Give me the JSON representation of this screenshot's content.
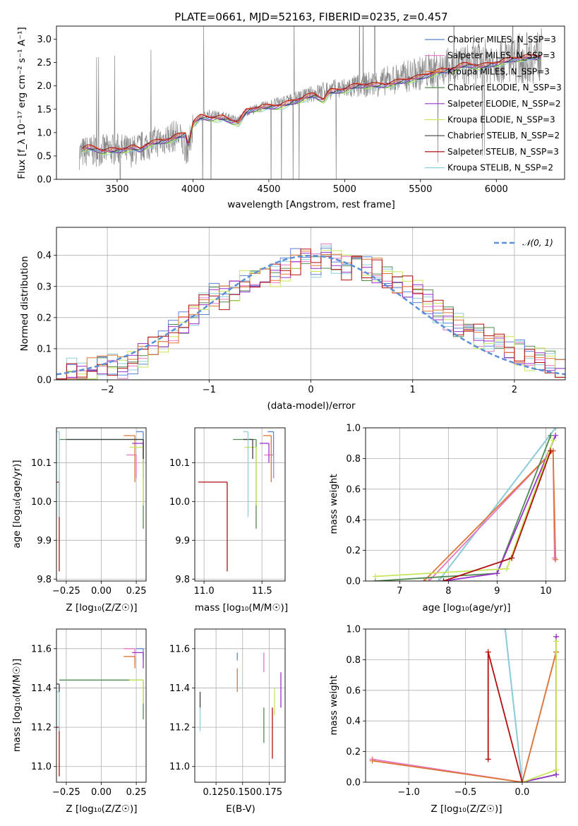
{
  "chart_data": [
    {
      "type": "line",
      "title": "PLATE=0661, MJD=52163, FIBERID=0235, z=0.457",
      "xlabel": "wavelength [Angstrom, rest frame]",
      "ylabel": "Flux [f_λ 10⁻¹⁷ erg cm⁻² s⁻¹ A⁻¹]",
      "xlim": [
        3100,
        6450
      ],
      "ylim": [
        0,
        3.28
      ],
      "xticks": [
        3500,
        4000,
        4500,
        5000,
        5500,
        6000
      ],
      "yticks": [
        0.0,
        0.5,
        1.0,
        1.5,
        2.0,
        2.5,
        3.0
      ],
      "grid": false,
      "legend": "top-right",
      "observed_flux": {
        "x": [
          3250,
          3300,
          3400,
          3500,
          3600,
          3700,
          3800,
          3900,
          3970,
          4000,
          4100,
          4200,
          4300,
          4350,
          4500,
          4700,
          4860,
          5000,
          5200,
          5400,
          5600,
          5800,
          6000,
          6200,
          6300
        ],
        "y": [
          0.55,
          0.6,
          0.62,
          0.65,
          0.6,
          0.75,
          0.85,
          0.95,
          0.6,
          1.2,
          1.4,
          1.35,
          1.25,
          1.45,
          1.6,
          1.75,
          1.9,
          1.95,
          2.05,
          2.2,
          2.35,
          2.45,
          2.55,
          2.6,
          2.65
        ]
      },
      "model_flux": {
        "x": [
          3270,
          3300,
          3400,
          3500,
          3600,
          3650,
          3700,
          3800,
          3900,
          3950,
          3970,
          4000,
          4050,
          4100,
          4200,
          4300,
          4350,
          4400,
          4500,
          4600,
          4700,
          4800,
          4860,
          4900,
          5000,
          5100,
          5200,
          5300,
          5400,
          5500,
          5600,
          5700,
          5800,
          5900,
          6000,
          6100,
          6200,
          6300
        ],
        "y": [
          0.62,
          0.65,
          0.6,
          0.63,
          0.66,
          0.6,
          0.72,
          0.82,
          0.92,
          0.95,
          0.7,
          1.18,
          1.3,
          1.3,
          1.32,
          1.2,
          1.42,
          1.48,
          1.55,
          1.6,
          1.68,
          1.78,
          1.7,
          1.88,
          1.92,
          1.98,
          2.0,
          2.05,
          2.1,
          2.15,
          2.3,
          2.35,
          2.42,
          2.4,
          2.5,
          2.55,
          2.58,
          2.62
        ]
      },
      "series": [
        {
          "name": "Chabrier MILES, N_SSP=3",
          "color": "#5b82d9"
        },
        {
          "name": "Salpeter MILES, N_SSP=3",
          "color": "#e377c2"
        },
        {
          "name": "Kroupa MILES, N_SSP=3",
          "color": "#dd7733"
        },
        {
          "name": "Chabrier ELODIE, N_SSP=3",
          "color": "#4f8a4f"
        },
        {
          "name": "Salpeter ELODIE, N_SSP=2",
          "color": "#9932cc"
        },
        {
          "name": "Kroupa ELODIE, N_SSP=3",
          "color": "#c8e65a"
        },
        {
          "name": "Chabrier STELIB, N_SSP=2",
          "color": "#404040"
        },
        {
          "name": "Salpeter STELIB, N_SSP=3",
          "color": "#b01010"
        },
        {
          "name": "Kroupa STELIB, N_SSP=2",
          "color": "#8ccfd8"
        }
      ]
    },
    {
      "type": "bar",
      "xlabel": "(data-model)/error",
      "ylabel": "Normed distribution",
      "xlim": [
        -2.5,
        2.5
      ],
      "ylim": [
        0,
        0.49
      ],
      "xticks": [
        -2,
        -1,
        0,
        1,
        2
      ],
      "yticks": [
        0.0,
        0.1,
        0.2,
        0.3,
        0.4
      ],
      "grid": true,
      "legend": "top-right",
      "gaussian_label": "𝒩(0, 1)",
      "bin_width": 0.1,
      "histogram_values": [
        0.02,
        0.03,
        0.02,
        0.03,
        0.04,
        0.05,
        0.04,
        0.06,
        0.08,
        0.1,
        0.13,
        0.16,
        0.18,
        0.21,
        0.24,
        0.27,
        0.26,
        0.29,
        0.31,
        0.33,
        0.35,
        0.34,
        0.36,
        0.38,
        0.39,
        0.37,
        0.4,
        0.38,
        0.36,
        0.37,
        0.36,
        0.35,
        0.33,
        0.31,
        0.3,
        0.28,
        0.25,
        0.22,
        0.2,
        0.18,
        0.16,
        0.14,
        0.13,
        0.12,
        0.1,
        0.09,
        0.07,
        0.06,
        0.05,
        0.04
      ]
    },
    {
      "type": "scatter",
      "xlabel": "Z [log₁₀(Z/Z☉)]",
      "ylabel": "age [log₁₀(age/yr)]",
      "xlim": [
        -0.32,
        0.32
      ],
      "ylim": [
        9.795,
        10.19
      ],
      "xticks": [
        -0.25,
        0.0,
        0.25
      ],
      "xticklabels": [
        "−0.25",
        "0.00",
        "0.25"
      ],
      "yticks": [
        9.8,
        9.9,
        10.0,
        10.1
      ],
      "grid": true,
      "points": [
        {
          "series": 0,
          "x": 0.3,
          "y": 10.18,
          "xerr": 0.05,
          "yerr": 0.12
        },
        {
          "series": 1,
          "x": 0.25,
          "y": 10.12,
          "xerr": 0.07,
          "yerr": 0.06
        },
        {
          "series": 2,
          "x": 0.24,
          "y": 10.17,
          "xerr": 0.08,
          "yerr": 0.12
        },
        {
          "series": 3,
          "x": 0.3,
          "y": 10.16,
          "xerr": 0.6,
          "yerr": 0.23
        },
        {
          "series": 4,
          "x": 0.3,
          "y": 10.15,
          "xerr": 0.08,
          "yerr": 0.05
        },
        {
          "series": 5,
          "x": 0.3,
          "y": 10.14,
          "xerr": 0.1,
          "yerr": 0.15
        },
        {
          "series": 6,
          "x": 0.3,
          "y": 10.16,
          "xerr": 0.55,
          "yerr": 0.05
        },
        {
          "series": 7,
          "x": -0.3,
          "y": 10.05,
          "xerr": 0.3,
          "yerr": 0.23
        },
        {
          "series": 8,
          "x": -0.3,
          "y": 10.18,
          "xerr": 0.2,
          "yerr": 0.22
        }
      ]
    },
    {
      "type": "scatter",
      "xlabel": "mass [log₁₀(M/M☉)]",
      "ylabel": "",
      "xlim": [
        10.92,
        11.7
      ],
      "ylim": [
        9.795,
        10.19
      ],
      "xticks": [
        11.0,
        11.5
      ],
      "xticklabels": [
        "11.0",
        "11.5"
      ],
      "yticks": [
        9.8,
        9.9,
        10.0,
        10.1
      ],
      "grid": true,
      "points": [
        {
          "series": 0,
          "x": 11.6,
          "y": 10.18,
          "xerr": 0.05,
          "yerr": 0.12
        },
        {
          "series": 1,
          "x": 11.6,
          "y": 10.12,
          "xerr": 0.08,
          "yerr": 0.06
        },
        {
          "series": 2,
          "x": 11.58,
          "y": 10.17,
          "xerr": 0.07,
          "yerr": 0.12
        },
        {
          "series": 3,
          "x": 11.45,
          "y": 10.16,
          "xerr": 0.2,
          "yerr": 0.23
        },
        {
          "series": 4,
          "x": 11.56,
          "y": 10.15,
          "xerr": 0.08,
          "yerr": 0.05
        },
        {
          "series": 5,
          "x": 11.45,
          "y": 10.14,
          "xerr": 0.1,
          "yerr": 0.15
        },
        {
          "series": 6,
          "x": 11.42,
          "y": 10.16,
          "xerr": 0.08,
          "yerr": 0.05
        },
        {
          "series": 7,
          "x": 11.2,
          "y": 10.05,
          "xerr": 0.25,
          "yerr": 0.23
        },
        {
          "series": 8,
          "x": 11.38,
          "y": 10.18,
          "xerr": 0.04,
          "yerr": 0.22
        }
      ]
    },
    {
      "type": "line",
      "xlabel": "age [log₁₀(age/yr)]",
      "ylabel": "mass weight",
      "xlim": [
        6.3,
        10.4
      ],
      "ylim": [
        0,
        1.0
      ],
      "xticks": [
        7,
        8,
        9,
        10
      ],
      "xticklabels": [
        "7",
        "8",
        "9",
        "10"
      ],
      "yticks": [
        0.0,
        0.2,
        0.4,
        0.6,
        0.8,
        1.0
      ],
      "yticklabels": [
        "0.0",
        "0.2",
        "0.4",
        "0.6",
        "0.8",
        "1.0"
      ],
      "grid": true,
      "lines": [
        {
          "series": 0,
          "x": [
            7.8,
            10.2
          ],
          "y": [
            0.0,
            1.0
          ]
        },
        {
          "series": 8,
          "x": [
            7.8,
            10.2
          ],
          "y": [
            0.0,
            1.0
          ]
        },
        {
          "series": 1,
          "x": [
            7.6,
            10.15,
            10.18
          ],
          "y": [
            0.0,
            0.85,
            0.15
          ]
        },
        {
          "series": 2,
          "x": [
            7.5,
            10.15,
            10.2
          ],
          "y": [
            0.0,
            0.85,
            0.14
          ]
        },
        {
          "series": 3,
          "x": [
            6.5,
            9.0,
            10.1
          ],
          "y": [
            0.0,
            0.05,
            0.95
          ]
        },
        {
          "series": 4,
          "x": [
            7.9,
            9.0,
            10.2
          ],
          "y": [
            0.0,
            0.05,
            0.95
          ]
        },
        {
          "series": 5,
          "x": [
            6.5,
            9.2,
            10.15
          ],
          "y": [
            0.03,
            0.08,
            0.92
          ]
        },
        {
          "series": 7,
          "x": [
            7.9,
            9.3,
            10.1
          ],
          "y": [
            0.0,
            0.15,
            0.85
          ]
        }
      ]
    },
    {
      "type": "scatter",
      "xlabel": "Z [log₁₀(Z/Z☉)]",
      "ylabel": "mass [log₁₀(M/M☉)]",
      "xlim": [
        -0.32,
        0.32
      ],
      "ylim": [
        10.92,
        11.7
      ],
      "xticks": [
        -0.25,
        0.0,
        0.25
      ],
      "xticklabels": [
        "−0.25",
        "0.00",
        "0.25"
      ],
      "yticks": [
        11.0,
        11.2,
        11.4,
        11.6
      ],
      "grid": true,
      "points": [
        {
          "series": 0,
          "x": 0.3,
          "y": 11.6,
          "xerr": 0.05,
          "yerr": 0.05
        },
        {
          "series": 1,
          "x": 0.24,
          "y": 11.6,
          "xerr": 0.08,
          "yerr": 0.08
        },
        {
          "series": 2,
          "x": 0.24,
          "y": 11.56,
          "xerr": 0.08,
          "yerr": 0.06
        },
        {
          "series": 3,
          "x": 0.3,
          "y": 11.44,
          "xerr": 0.6,
          "yerr": 0.2
        },
        {
          "series": 4,
          "x": 0.3,
          "y": 11.58,
          "xerr": 0.08,
          "yerr": 0.08
        },
        {
          "series": 5,
          "x": 0.3,
          "y": 11.44,
          "xerr": 0.1,
          "yerr": 0.12
        },
        {
          "series": 6,
          "x": -0.3,
          "y": 11.42,
          "xerr": 0.2,
          "yerr": 0.04
        },
        {
          "series": 7,
          "x": -0.3,
          "y": 11.2,
          "xerr": 0.3,
          "yerr": 0.25
        },
        {
          "series": 8,
          "x": -0.3,
          "y": 11.38,
          "xerr": 0.2,
          "yerr": 0.2
        }
      ]
    },
    {
      "type": "scatter",
      "xlabel": "E(B-V)",
      "ylabel": "",
      "xlim": [
        0.105,
        0.19
      ],
      "ylim": [
        10.92,
        11.7
      ],
      "xticks": [
        0.125,
        0.15,
        0.175
      ],
      "xticklabels": [
        "0.125",
        "0.150",
        "0.175"
      ],
      "yticks": [
        11.0,
        11.2,
        11.4,
        11.6
      ],
      "grid": true,
      "points": [
        {
          "series": 0,
          "x": 0.145,
          "y": 11.58,
          "xerr": 0,
          "yerr": 0.04
        },
        {
          "series": 1,
          "x": 0.17,
          "y": 11.58,
          "xerr": 0,
          "yerr": 0.1
        },
        {
          "series": 2,
          "x": 0.145,
          "y": 11.5,
          "xerr": 0,
          "yerr": 0.12
        },
        {
          "series": 3,
          "x": 0.17,
          "y": 11.3,
          "xerr": 0,
          "yerr": 0.18
        },
        {
          "series": 4,
          "x": 0.186,
          "y": 11.48,
          "xerr": 0,
          "yerr": 0.18
        },
        {
          "series": 5,
          "x": 0.18,
          "y": 11.4,
          "xerr": 0,
          "yerr": 0.14
        },
        {
          "series": 6,
          "x": 0.11,
          "y": 11.38,
          "xerr": 0,
          "yerr": 0.08
        },
        {
          "series": 7,
          "x": 0.178,
          "y": 11.3,
          "xerr": 0,
          "yerr": 0.26
        },
        {
          "series": 8,
          "x": 0.11,
          "y": 11.3,
          "xerr": 0,
          "yerr": 0.12
        }
      ]
    },
    {
      "type": "line",
      "xlabel": "Z [log₁₀(Z/Z☉)]",
      "ylabel": "mass weight",
      "xlim": [
        -1.38,
        0.38
      ],
      "ylim": [
        0,
        1.0
      ],
      "xticks": [
        -1.0,
        -0.5,
        0.0
      ],
      "xticklabels": [
        "−1.0",
        "−0.5",
        "0.0"
      ],
      "yticks": [
        0.0,
        0.2,
        0.4,
        0.6,
        0.8,
        1.0
      ],
      "yticklabels": [
        "0.0",
        "0.2",
        "0.4",
        "0.6",
        "0.8",
        "1.0"
      ],
      "grid": true,
      "lines": [
        {
          "series": 0,
          "x": [
            -0.15,
            0.0
          ],
          "y": [
            1.0,
            0.0
          ]
        },
        {
          "series": 8,
          "x": [
            -0.15,
            0.0
          ],
          "y": [
            1.0,
            0.0
          ]
        },
        {
          "series": 1,
          "x": [
            -1.32,
            0.0,
            0.3
          ],
          "y": [
            0.15,
            0.0,
            0.85
          ]
        },
        {
          "series": 2,
          "x": [
            -1.32,
            0.0,
            0.3
          ],
          "y": [
            0.14,
            0.0,
            0.85
          ]
        },
        {
          "series": 3,
          "x": [
            0.0,
            0.3,
            0.3
          ],
          "y": [
            0.0,
            0.05,
            0.95
          ]
        },
        {
          "series": 4,
          "x": [
            0.0,
            0.3,
            0.3
          ],
          "y": [
            0.0,
            0.05,
            0.95
          ]
        },
        {
          "series": 5,
          "x": [
            0.0,
            0.3,
            0.3
          ],
          "y": [
            0.0,
            0.08,
            0.92
          ]
        },
        {
          "series": 7,
          "x": [
            -0.3,
            -0.3,
            0.0
          ],
          "y": [
            0.15,
            0.85,
            0.0
          ]
        }
      ]
    }
  ]
}
